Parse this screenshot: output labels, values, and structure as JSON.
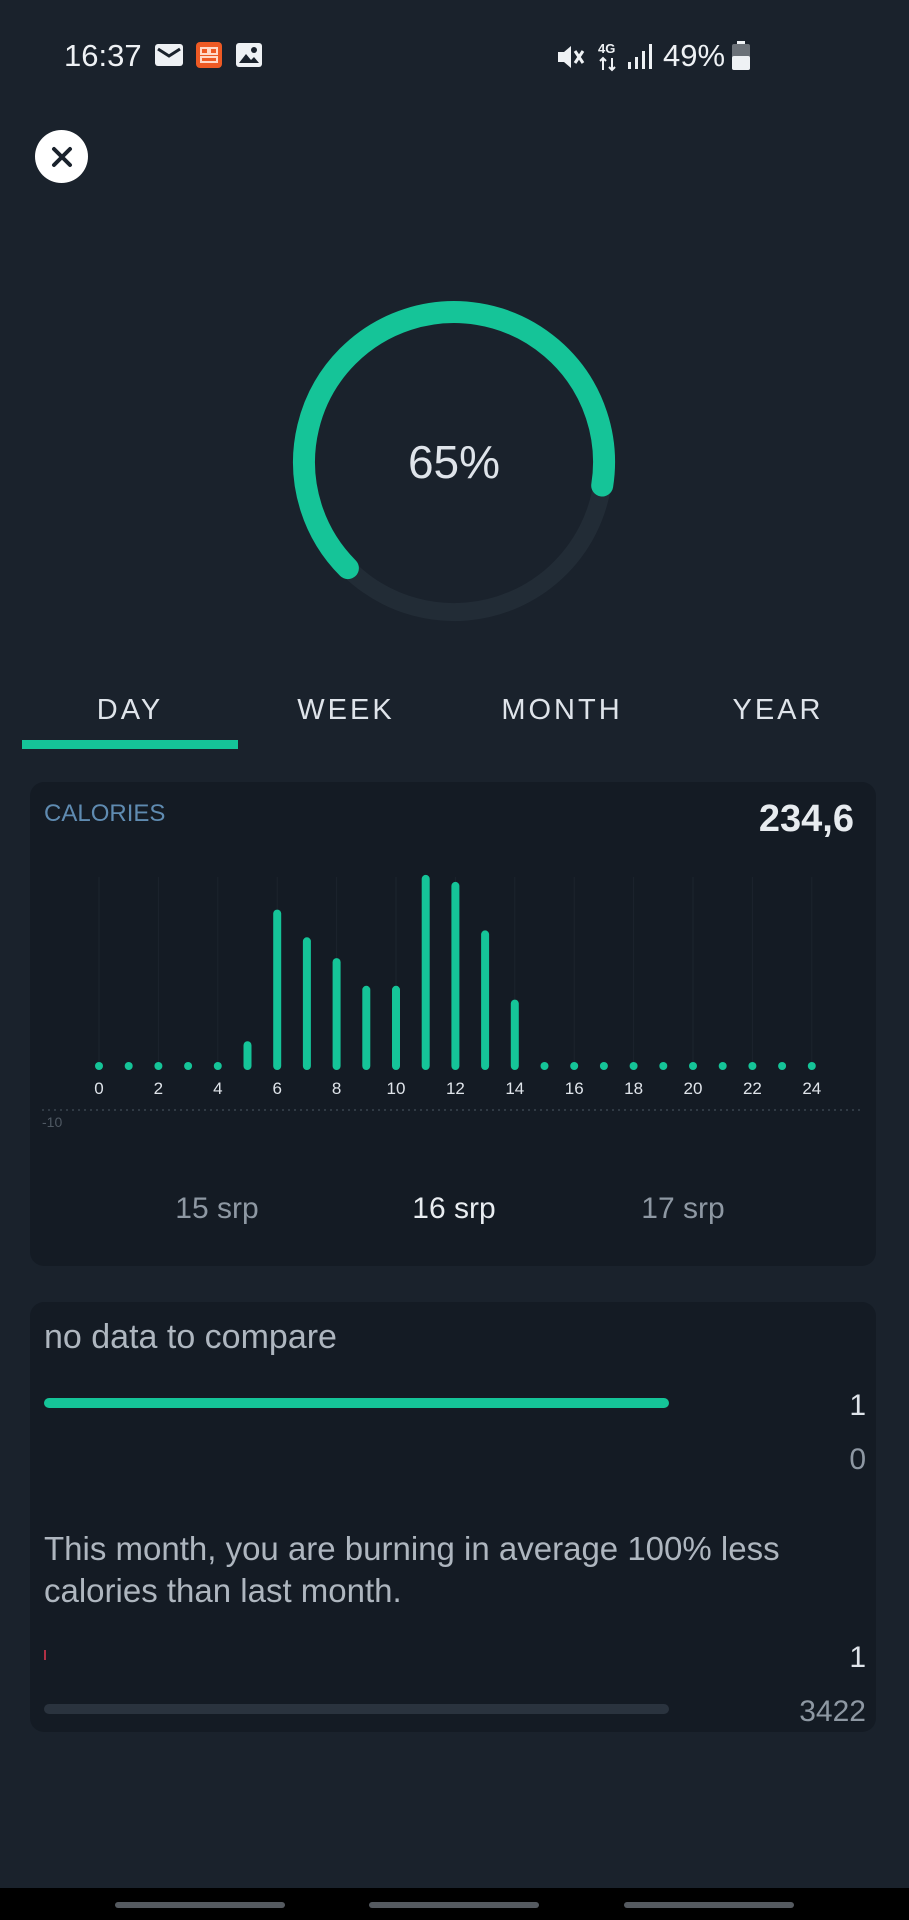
{
  "status_bar": {
    "time": "16:37",
    "battery": "49%",
    "network": "4G",
    "icons": [
      "mail-icon",
      "app-notification-icon",
      "image-icon",
      "mute-icon",
      "network-4g-icon",
      "signal-icon",
      "battery-icon"
    ]
  },
  "ring": {
    "label": "65%",
    "value_percent": 65,
    "accent": "#15c498",
    "track": "#222c36"
  },
  "tabs": [
    {
      "label": "DAY",
      "active": true
    },
    {
      "label": "WEEK",
      "active": false
    },
    {
      "label": "MONTH",
      "active": false
    },
    {
      "label": "YEAR",
      "active": false
    }
  ],
  "calories": {
    "title": "CALORIES",
    "total": "234,6",
    "dates": [
      {
        "label": "15 srp",
        "active": false
      },
      {
        "label": "16 srp",
        "active": true
      },
      {
        "label": "17 srp",
        "active": false
      }
    ]
  },
  "chart_data": {
    "type": "bar",
    "categories": [
      "0",
      "1",
      "2",
      "3",
      "4",
      "5",
      "6",
      "7",
      "8",
      "9",
      "10",
      "11",
      "12",
      "13",
      "14",
      "15",
      "16",
      "17",
      "18",
      "19",
      "20",
      "21",
      "22",
      "23",
      "24"
    ],
    "x_tick_labels": [
      "0",
      "2",
      "4",
      "6",
      "8",
      "10",
      "12",
      "14",
      "16",
      "18",
      "20",
      "22",
      "24"
    ],
    "values": [
      0,
      0,
      0,
      0,
      0,
      3,
      22,
      18,
      15,
      11,
      11,
      27,
      26,
      19,
      9,
      0,
      0,
      0,
      0,
      0,
      0,
      0,
      0,
      0,
      0
    ],
    "ylim": [
      -10,
      28
    ],
    "y_tick_labels": [
      "-10"
    ],
    "grid": true,
    "color": "#15c498"
  },
  "comparison": {
    "no_data_text": "no data to compare",
    "top_bar_value_top": "1",
    "top_bar_value_bottom": "0",
    "top_bar_fill": 1.0,
    "message": "This month, you are burning in average 100% less calories than last month.",
    "bottom_value_top": "1",
    "bottom_value_bottom": "3422",
    "bottom_bar_fill": 0.0
  }
}
